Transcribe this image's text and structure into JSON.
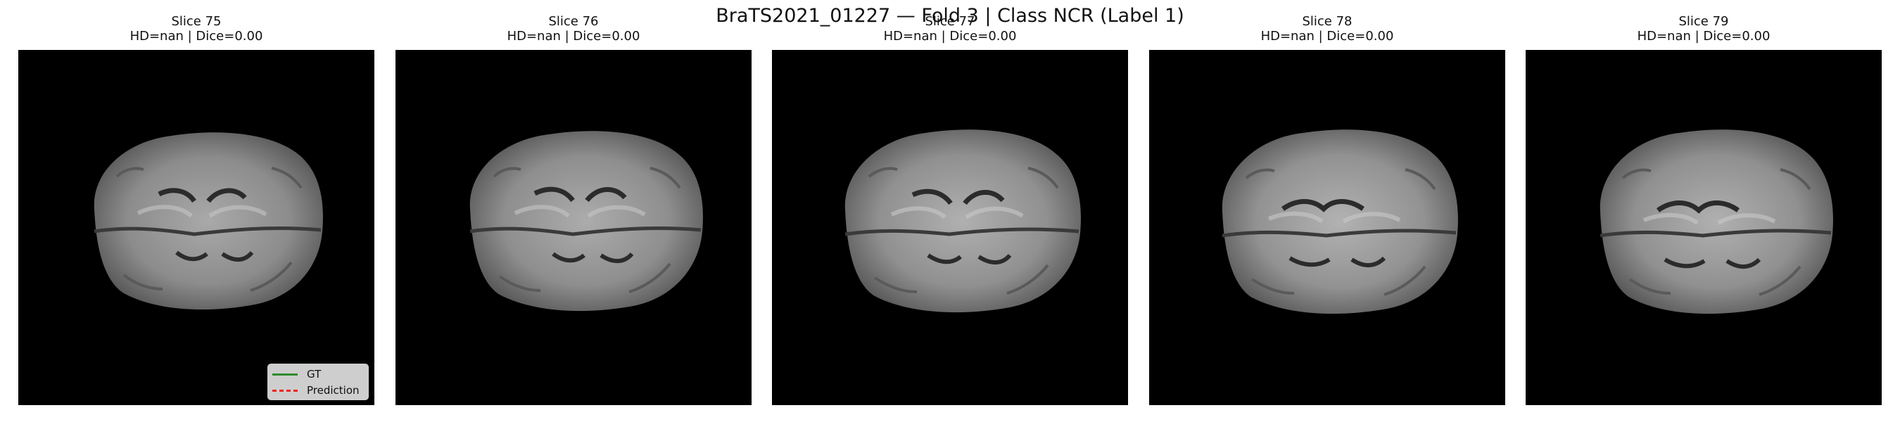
{
  "figure": {
    "title": "BraTS2021_01227 — Fold 3 | Class NCR (Label 1)"
  },
  "panels": [
    {
      "slice_label": "Slice 75",
      "metrics": "HD=nan | Dice=0.00"
    },
    {
      "slice_label": "Slice 76",
      "metrics": "HD=nan | Dice=0.00"
    },
    {
      "slice_label": "Slice 77",
      "metrics": "HD=nan | Dice=0.00"
    },
    {
      "slice_label": "Slice 78",
      "metrics": "HD=nan | Dice=0.00"
    },
    {
      "slice_label": "Slice 79",
      "metrics": "HD=nan | Dice=0.00"
    }
  ],
  "legend": {
    "gt_label": "GT",
    "prediction_label": "Prediction",
    "gt_color": "#2e8b2e",
    "prediction_color": "#ee2222"
  }
}
